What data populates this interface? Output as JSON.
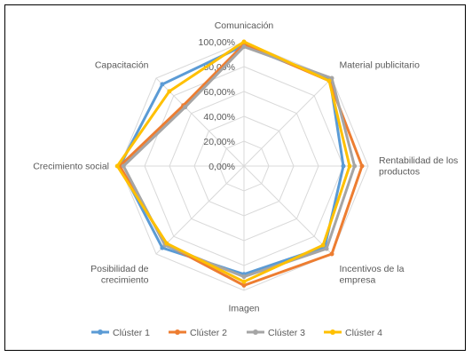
{
  "chart_data": {
    "type": "radar",
    "title": "",
    "categories": [
      "Comunicación",
      "Material publicitario",
      "Rentabilidad de los productos",
      "Incentivos de la empresa",
      "Imagen",
      "Posibilidad de crecimiento",
      "Crecimiento social",
      "Capacitación"
    ],
    "category_lines": [
      [
        "Comunicación"
      ],
      [
        "Material publicitario"
      ],
      [
        "Rentabilidad de los",
        "productos"
      ],
      [
        "Incentivos de la",
        "empresa"
      ],
      [
        "Imagen"
      ],
      [
        "Posibilidad de",
        "crecimiento"
      ],
      [
        "Crecimiento social"
      ],
      [
        "Capacitación"
      ]
    ],
    "rlim": [
      0,
      100
    ],
    "tick_values": [
      0,
      20,
      40,
      60,
      80,
      100
    ],
    "tick_labels": [
      "0,00%",
      "20,00%",
      "40,00%",
      "60,00%",
      "80,00%",
      "100,00%"
    ],
    "grid": true,
    "legend_position": "bottom",
    "series": [
      {
        "name": "Clúster 1",
        "color": "#5B9BD5",
        "values": [
          97,
          98,
          80,
          92,
          87,
          93,
          100,
          93
        ]
      },
      {
        "name": "Clúster 2",
        "color": "#ED7D31",
        "values": [
          98,
          97,
          95,
          100,
          96,
          89,
          100,
          69
        ]
      },
      {
        "name": "Clúster 3",
        "color": "#A5A5A5",
        "values": [
          96,
          100,
          89,
          94,
          89,
          90,
          97,
          67
        ]
      },
      {
        "name": "Clúster 4",
        "color": "#FFC000",
        "values": [
          100,
          97,
          85,
          90,
          93,
          88,
          102,
          85
        ]
      }
    ]
  }
}
